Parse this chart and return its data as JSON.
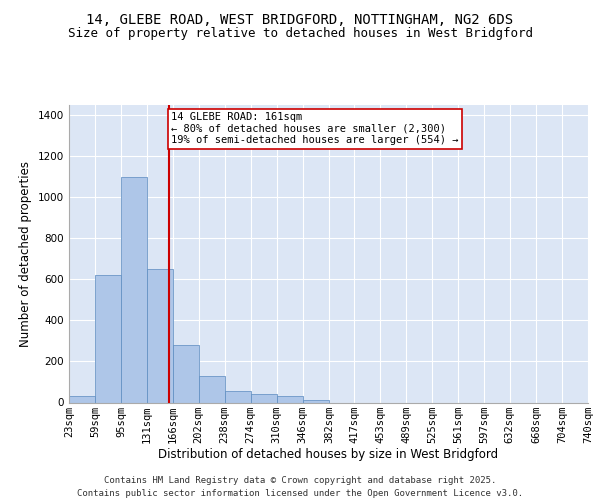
{
  "title1": "14, GLEBE ROAD, WEST BRIDGFORD, NOTTINGHAM, NG2 6DS",
  "title2": "Size of property relative to detached houses in West Bridgford",
  "xlabel": "Distribution of detached houses by size in West Bridgford",
  "ylabel": "Number of detached properties",
  "bin_edges": [
    23,
    59,
    95,
    131,
    166,
    202,
    238,
    274,
    310,
    346,
    382,
    417,
    453,
    489,
    525,
    561,
    597,
    632,
    668,
    704,
    740
  ],
  "bar_heights": [
    30,
    620,
    1100,
    650,
    280,
    130,
    55,
    40,
    30,
    10,
    0,
    0,
    0,
    0,
    0,
    0,
    0,
    0,
    0,
    0
  ],
  "bar_color": "#aec6e8",
  "bar_edgecolor": "#5a8abf",
  "property_line_x": 161,
  "property_line_color": "#cc0000",
  "ylim": [
    0,
    1450
  ],
  "yticks": [
    0,
    200,
    400,
    600,
    800,
    1000,
    1200,
    1400
  ],
  "background_color": "#dce6f5",
  "grid_color": "#ffffff",
  "annotation_text": "14 GLEBE ROAD: 161sqm\n← 80% of detached houses are smaller (2,300)\n19% of semi-detached houses are larger (554) →",
  "annotation_box_color": "#ffffff",
  "annotation_box_edgecolor": "#cc0000",
  "footer1": "Contains HM Land Registry data © Crown copyright and database right 2025.",
  "footer2": "Contains public sector information licensed under the Open Government Licence v3.0.",
  "title1_fontsize": 10,
  "title2_fontsize": 9,
  "xlabel_fontsize": 8.5,
  "ylabel_fontsize": 8.5,
  "tick_fontsize": 7.5,
  "annotation_fontsize": 7.5,
  "footer_fontsize": 6.5
}
